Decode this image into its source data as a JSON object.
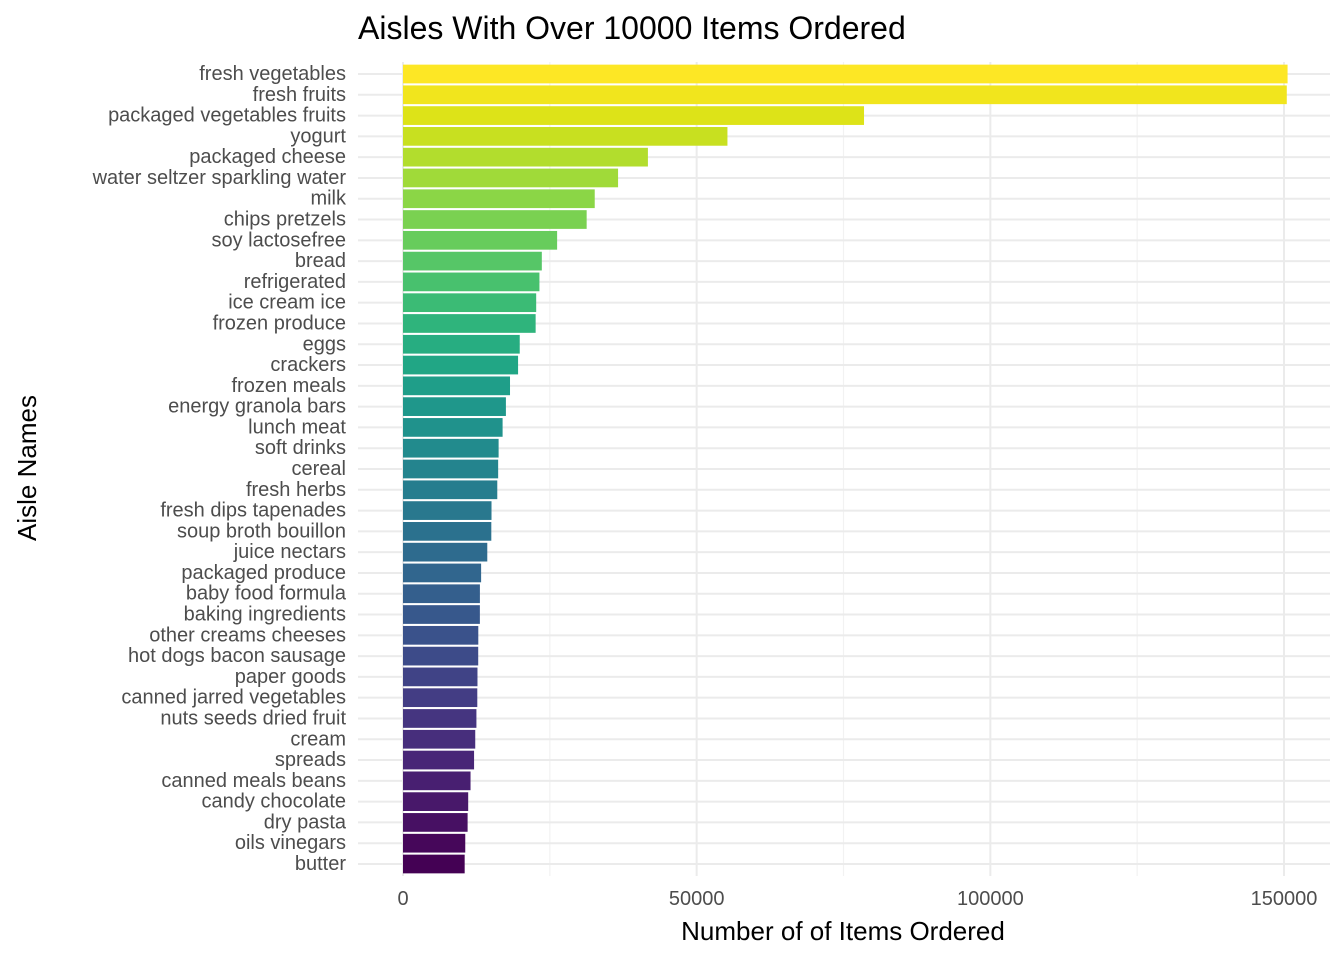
{
  "chart_data": {
    "type": "bar",
    "orientation": "horizontal",
    "title": "Aisles With Over 10000 Items Ordered",
    "xlabel": "Number of of Items Ordered",
    "ylabel": "Aisle Names",
    "xlim": [
      0,
      158000
    ],
    "x_ticks": [
      0,
      50000,
      100000,
      150000
    ],
    "x_tick_labels": [
      "0",
      "50000",
      "100000",
      "150000"
    ],
    "grid": true,
    "legend": "none",
    "color_scale": "viridis",
    "categories": [
      "fresh vegetables",
      "fresh fruits",
      "packaged vegetables fruits",
      "yogurt",
      "packaged cheese",
      "water seltzer sparkling water",
      "milk",
      "chips pretzels",
      "soy lactosefree",
      "bread",
      "refrigerated",
      "ice cream ice",
      "frozen produce",
      "eggs",
      "crackers",
      "frozen meals",
      "energy granola bars",
      "lunch meat",
      "soft drinks",
      "cereal",
      "fresh herbs",
      "fresh dips tapenades",
      "soup broth bouillon",
      "juice nectars",
      "packaged produce",
      "baby food formula",
      "baking ingredients",
      "other creams cheeses",
      "hot dogs bacon sausage",
      "paper goods",
      "canned jarred vegetables",
      "nuts seeds dried fruit",
      "cream",
      "spreads",
      "canned meals beans",
      "candy chocolate",
      "dry pasta",
      "oils vinegars",
      "butter"
    ],
    "values": [
      150609,
      150473,
      78493,
      55240,
      41699,
      36617,
      32644,
      31269,
      26240,
      23635,
      23228,
      22676,
      22583,
      19875,
      19592,
      18221,
      17520,
      16957,
      16279,
      16201,
      16052,
      15069,
      15037,
      14350,
      13300,
      13093,
      13088,
      12820,
      12806,
      12680,
      12650,
      12500,
      12300,
      12100,
      11500,
      11100,
      11000,
      10600,
      10500
    ],
    "colors": [
      "#fde725",
      "#f1e51d",
      "#dde318",
      "#c8e020",
      "#b2dd2d",
      "#a0da39",
      "#8bd646",
      "#7ad151",
      "#67cc5c",
      "#56c667",
      "#48c16e",
      "#3bbb75",
      "#2fb47c",
      "#27ad81",
      "#21a685",
      "#1f9e89",
      "#1f978b",
      "#20928c",
      "#228b8d",
      "#24848e",
      "#267d8e",
      "#29788e",
      "#2b718e",
      "#2e6b8e",
      "#31668e",
      "#345f8d",
      "#37588c",
      "#3a528b",
      "#3d4b89",
      "#404386",
      "#433d84",
      "#453580",
      "#472e7c",
      "#482677",
      "#481f71",
      "#48186a",
      "#471063",
      "#46075a",
      "#440154"
    ]
  }
}
